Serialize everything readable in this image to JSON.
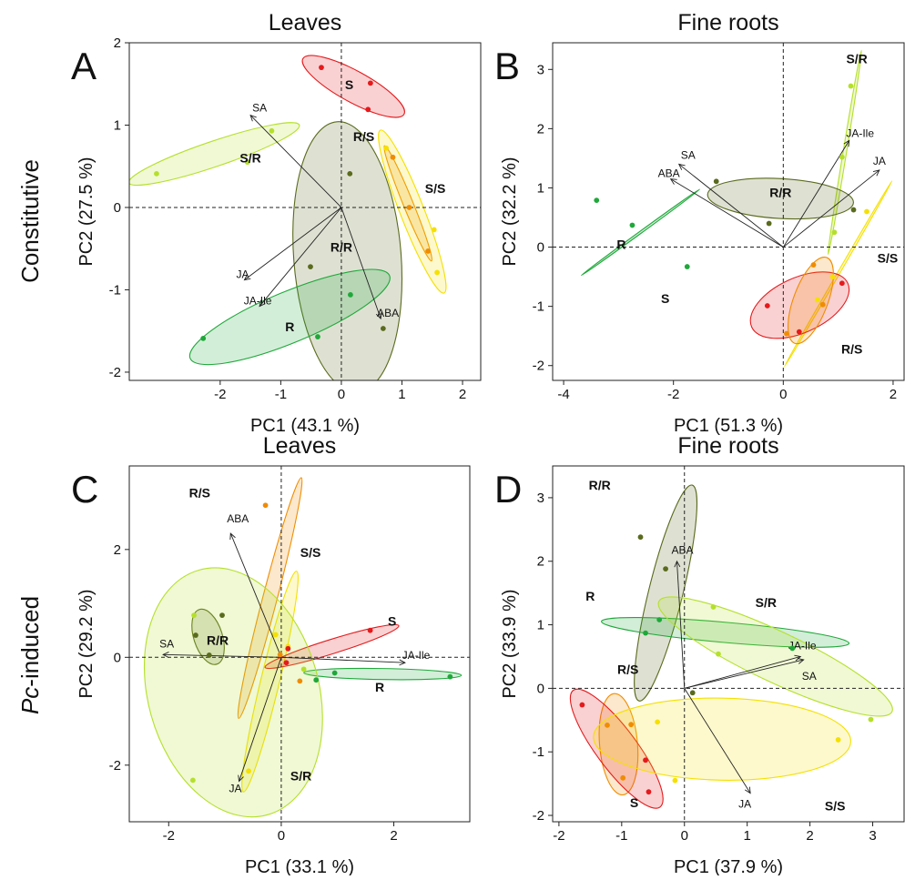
{
  "row_labels": {
    "constitutive": "Constitutive",
    "induced_prefix": "Pc",
    "induced_suffix": "-induced"
  },
  "colors": {
    "R": "#1fa83a",
    "S": "#e41a1c",
    "RR": "#5a6b1e",
    "SS": "#f5e000",
    "RS": "#f08c00",
    "SR": "#b5e02a"
  },
  "chart_data": [
    {
      "type": "scatter",
      "panel": "A",
      "title": "Leaves",
      "xlabel": "PC1 (43.1 %)",
      "ylabel": "PC2 (27.5 %)",
      "xlim": [
        -3.5,
        2.3
      ],
      "ylim": [
        -2.1,
        2.0
      ],
      "xticks": [
        -2,
        -1,
        0,
        1,
        2
      ],
      "yticks": [
        -2,
        -1,
        0,
        1,
        2
      ],
      "groups": [
        {
          "name": "S",
          "color": "S",
          "label_pos": [
            0.13,
            1.49
          ],
          "points": [
            [
              -0.33,
              1.7
            ],
            [
              0.48,
              1.51
            ],
            [
              0.44,
              1.19
            ]
          ],
          "ellipse": {
            "cx": 0.2,
            "cy": 1.47,
            "rx": 0.9,
            "ry": 0.22,
            "angle": -22
          }
        },
        {
          "name": "S/R",
          "color": "SR",
          "label_pos": [
            -1.5,
            0.6
          ],
          "points": [
            [
              -3.05,
              0.41
            ],
            [
              -1.15,
              0.93
            ],
            [
              -1.55,
              0.55
            ]
          ],
          "ellipse": {
            "cx": -2.1,
            "cy": 0.65,
            "rx": 1.45,
            "ry": 0.18,
            "angle": 14
          }
        },
        {
          "name": "R/S",
          "color": "RS",
          "label_pos": [
            0.37,
            0.86
          ],
          "points": [
            [
              0.85,
              0.61
            ],
            [
              1.12,
              0.0
            ],
            [
              1.43,
              -0.53
            ]
          ],
          "ellipse": {
            "cx": 1.1,
            "cy": 0.05,
            "rx": 0.8,
            "ry": 0.07,
            "angle": -61
          }
        },
        {
          "name": "S/S",
          "color": "SS",
          "label_pos": [
            1.55,
            0.23
          ],
          "points": [
            [
              0.74,
              0.72
            ],
            [
              1.53,
              -0.27
            ],
            [
              1.58,
              -0.79
            ]
          ],
          "ellipse": {
            "cx": 1.17,
            "cy": -0.05,
            "rx": 1.12,
            "ry": 0.17,
            "angle": -62
          }
        },
        {
          "name": "R/R",
          "color": "RR",
          "label_pos": [
            0.0,
            -0.48
          ],
          "points": [
            [
              0.14,
              0.41
            ],
            [
              -0.51,
              -0.72
            ],
            [
              0.69,
              -1.47
            ]
          ],
          "ellipse": {
            "cx": 0.1,
            "cy": -0.6,
            "rx": 1.65,
            "ry": 0.76,
            "angle": -84
          }
        },
        {
          "name": "R",
          "color": "R",
          "label_pos": [
            -0.85,
            -1.45
          ],
          "points": [
            [
              -2.28,
              -1.59
            ],
            [
              -0.39,
              -1.57
            ],
            [
              0.15,
              -1.06
            ]
          ],
          "ellipse": {
            "cx": -0.85,
            "cy": -1.33,
            "rx": 1.72,
            "ry": 0.36,
            "angle": 17
          }
        }
      ],
      "vectors": [
        {
          "name": "SA",
          "x": -1.5,
          "y": 1.12
        },
        {
          "name": "JA",
          "x": -1.6,
          "y": -0.88
        },
        {
          "name": "JA-Ile",
          "x": -1.35,
          "y": -1.2
        },
        {
          "name": "ABA",
          "x": 0.65,
          "y": -1.35
        }
      ],
      "label_offsets": [
        [
          10,
          -4
        ],
        [
          -2,
          -2
        ],
        [
          -2,
          -2
        ],
        [
          8,
          -2
        ]
      ],
      "label_anchor": [
        "middle",
        "middle",
        "middle",
        "middle"
      ]
    },
    {
      "type": "scatter",
      "panel": "B",
      "title": "Fine roots",
      "xlabel": "PC1 (51.3 %)",
      "ylabel": "PC2 (32.2 %)",
      "xlim": [
        -4.2,
        2.2
      ],
      "ylim": [
        -2.25,
        3.45
      ],
      "xticks": [
        -4,
        -2,
        0,
        2
      ],
      "yticks": [
        -2,
        -1,
        0,
        1,
        2,
        3
      ],
      "groups": [
        {
          "name": "S/R",
          "color": "SR",
          "label_pos": [
            1.34,
            3.18
          ],
          "points": [
            [
              1.23,
              2.72
            ],
            [
              1.07,
              1.52
            ],
            [
              0.93,
              0.25
            ]
          ],
          "ellipse": {
            "cx": 1.12,
            "cy": 1.6,
            "rx": 1.75,
            "ry": 0.03,
            "angle": 80
          }
        },
        {
          "name": "R/R",
          "color": "RR",
          "label_pos": [
            -0.05,
            0.92
          ],
          "points": [
            [
              -1.22,
              1.11
            ],
            [
              -0.26,
              0.4
            ],
            [
              1.28,
              0.63
            ]
          ],
          "ellipse": {
            "cx": -0.05,
            "cy": 0.82,
            "rx": 1.33,
            "ry": 0.35,
            "angle": -3
          }
        },
        {
          "name": "R",
          "color": "R",
          "label_pos": [
            -2.95,
            0.05
          ],
          "points": [
            [
              -3.4,
              0.79
            ],
            [
              -2.75,
              0.37
            ],
            [
              -1.75,
              -0.33
            ]
          ],
          "ellipse": {
            "cx": -2.6,
            "cy": 0.25,
            "rx": 1.3,
            "ry": 0.01,
            "angle": 34
          }
        },
        {
          "name": "S/S",
          "color": "SS",
          "label_pos": [
            1.9,
            -0.18
          ],
          "points": [
            [
              1.52,
              0.6
            ],
            [
              0.62,
              -0.89
            ],
            [
              0.9,
              -0.5
            ]
          ],
          "ellipse": {
            "cx": 1.0,
            "cy": -0.45,
            "rx": 1.85,
            "ry": 0.02,
            "angle": 58
          }
        },
        {
          "name": "S",
          "color": "S",
          "label_pos": [
            -2.15,
            -0.87
          ],
          "points": [
            [
              -0.29,
              -0.99
            ],
            [
              1.07,
              -0.61
            ],
            [
              0.29,
              -1.43
            ]
          ],
          "ellipse": {
            "cx": 0.3,
            "cy": -0.98,
            "rx": 0.95,
            "ry": 0.48,
            "angle": 23
          }
        },
        {
          "name": "R/S",
          "color": "RS",
          "label_pos": [
            1.25,
            -1.72
          ],
          "points": [
            [
              0.55,
              -0.3
            ],
            [
              0.72,
              -0.97
            ],
            [
              0.06,
              -1.46
            ]
          ],
          "ellipse": {
            "cx": 0.5,
            "cy": -0.9,
            "rx": 0.78,
            "ry": 0.3,
            "angle": 68
          }
        }
      ],
      "vectors": [
        {
          "name": "SA",
          "x": -1.9,
          "y": 1.4
        },
        {
          "name": "ABA",
          "x": -2.05,
          "y": 1.15
        },
        {
          "name": "JA-Ile",
          "x": 1.2,
          "y": 1.8
        },
        {
          "name": "JA",
          "x": 1.75,
          "y": 1.3
        }
      ],
      "label_offsets": [
        [
          10,
          -6
        ],
        [
          -2,
          -2
        ],
        [
          12,
          -4
        ],
        [
          0,
          -6
        ]
      ],
      "label_anchor": [
        "middle",
        "middle",
        "middle",
        "middle"
      ]
    },
    {
      "type": "scatter",
      "panel": "C",
      "title": "Leaves",
      "xlabel": "PC1 (33.1 %)",
      "ylabel": "PC2 (29.2 %)",
      "xlim": [
        -2.7,
        3.35
      ],
      "ylim": [
        -3.05,
        3.55
      ],
      "xticks": [
        -2,
        0,
        2
      ],
      "yticks": [
        -2,
        0,
        2
      ],
      "groups": [
        {
          "name": "R/S",
          "color": "RS",
          "label_pos": [
            -1.45,
            3.05
          ],
          "points": [
            [
              -0.28,
              2.82
            ],
            [
              0.33,
              -0.44
            ],
            [
              -0.02,
              0.05
            ]
          ],
          "ellipse": {
            "cx": -0.2,
            "cy": 1.1,
            "rx": 2.3,
            "ry": 0.13,
            "angle": 76
          }
        },
        {
          "name": "S/S",
          "color": "SS",
          "label_pos": [
            0.52,
            1.95
          ],
          "points": [
            [
              -0.1,
              0.42
            ],
            [
              -0.58,
              -2.11
            ],
            [
              0.12,
              0.2
            ]
          ],
          "ellipse": {
            "cx": -0.2,
            "cy": -0.45,
            "rx": 2.1,
            "ry": 0.17,
            "angle": 77
          }
        },
        {
          "name": "S",
          "color": "S",
          "label_pos": [
            1.97,
            0.67
          ],
          "points": [
            [
              1.58,
              0.5
            ],
            [
              0.12,
              0.16
            ],
            [
              0.09,
              -0.1
            ]
          ],
          "ellipse": {
            "cx": 0.9,
            "cy": 0.2,
            "rx": 1.25,
            "ry": 0.13,
            "angle": 18
          }
        },
        {
          "name": "R/R",
          "color": "RR",
          "label_pos": [
            -1.13,
            0.32
          ],
          "points": [
            [
              -1.05,
              0.78
            ],
            [
              -1.52,
              0.41
            ],
            [
              -1.28,
              0.04
            ]
          ],
          "ellipse": {
            "cx": -1.3,
            "cy": 0.38,
            "rx": 0.53,
            "ry": 0.26,
            "angle": -73
          }
        },
        {
          "name": "R",
          "color": "R",
          "label_pos": [
            1.75,
            -0.55
          ],
          "points": [
            [
              0.95,
              -0.29
            ],
            [
              0.62,
              -0.42
            ],
            [
              3.0,
              -0.36
            ]
          ],
          "ellipse": {
            "cx": 1.8,
            "cy": -0.31,
            "rx": 1.4,
            "ry": 0.1,
            "angle": -1
          }
        },
        {
          "name": "S/R",
          "color": "SR",
          "label_pos": [
            0.35,
            -2.2
          ],
          "points": [
            [
              -1.57,
              -2.28
            ],
            [
              -1.55,
              0.78
            ],
            [
              0.4,
              -0.22
            ]
          ],
          "ellipse": {
            "cx": -0.85,
            "cy": -0.65,
            "rx": 2.35,
            "ry": 1.55,
            "angle": -75
          }
        }
      ],
      "vectors": [
        {
          "name": "ABA",
          "x": -0.9,
          "y": 2.3
        },
        {
          "name": "SA",
          "x": -2.1,
          "y": 0.05
        },
        {
          "name": "JA-Ile",
          "x": 2.2,
          "y": -0.1
        },
        {
          "name": "JA",
          "x": -0.75,
          "y": -2.3
        }
      ],
      "label_offsets": [
        [
          8,
          -12
        ],
        [
          4,
          -8
        ],
        [
          12,
          -4
        ],
        [
          -4,
          12
        ]
      ],
      "label_anchor": [
        "middle",
        "middle",
        "middle",
        "middle"
      ]
    },
    {
      "type": "scatter",
      "panel": "D",
      "title": "Fine roots",
      "xlabel": "PC1 (37.9 %)",
      "ylabel": "PC2 (33.9 %)",
      "xlim": [
        -2.1,
        3.5
      ],
      "ylim": [
        -2.1,
        3.5
      ],
      "xticks": [
        -2,
        -1,
        0,
        1,
        2,
        3
      ],
      "yticks": [
        -2,
        -1,
        0,
        1,
        2,
        3
      ],
      "groups": [
        {
          "name": "R/R",
          "color": "RR",
          "label_pos": [
            -1.35,
            3.2
          ],
          "points": [
            [
              -0.7,
              2.38
            ],
            [
              -0.3,
              1.88
            ],
            [
              0.13,
              -0.07
            ]
          ],
          "ellipse": {
            "cx": -0.3,
            "cy": 1.5,
            "rx": 1.75,
            "ry": 0.27,
            "angle": 76
          }
        },
        {
          "name": "R",
          "color": "R",
          "label_pos": [
            -1.5,
            1.45
          ],
          "points": [
            [
              -0.4,
              1.08
            ],
            [
              -0.62,
              0.87
            ],
            [
              1.72,
              0.63
            ]
          ],
          "ellipse": {
            "cx": 0.65,
            "cy": 0.88,
            "rx": 1.98,
            "ry": 0.16,
            "angle": -5
          }
        },
        {
          "name": "S/R",
          "color": "SR",
          "label_pos": [
            1.3,
            1.35
          ],
          "points": [
            [
              0.46,
              1.28
            ],
            [
              0.54,
              0.54
            ],
            [
              2.97,
              -0.49
            ]
          ],
          "ellipse": {
            "cx": 1.45,
            "cy": 0.5,
            "rx": 2.05,
            "ry": 0.4,
            "angle": -25
          }
        },
        {
          "name": "R/S",
          "color": "RS",
          "label_pos": [
            -0.9,
            0.3
          ],
          "points": [
            [
              -1.23,
              -0.58
            ],
            [
              -0.85,
              -0.57
            ],
            [
              -0.98,
              -1.41
            ]
          ],
          "ellipse": {
            "cx": -1.05,
            "cy": -0.88,
            "rx": 0.8,
            "ry": 0.3,
            "angle": -85
          }
        },
        {
          "name": "S",
          "color": "S",
          "label_pos": [
            -0.8,
            -1.8
          ],
          "points": [
            [
              -1.63,
              -0.26
            ],
            [
              -0.62,
              -1.13
            ],
            [
              -0.57,
              -1.63
            ]
          ],
          "ellipse": {
            "cx": -1.08,
            "cy": -0.95,
            "rx": 1.15,
            "ry": 0.32,
            "angle": -53
          }
        },
        {
          "name": "S/S",
          "color": "SS",
          "label_pos": [
            2.4,
            -1.85
          ],
          "points": [
            [
              -0.43,
              -0.53
            ],
            [
              -0.15,
              -1.45
            ],
            [
              2.45,
              -0.81
            ]
          ],
          "ellipse": {
            "cx": 0.6,
            "cy": -0.8,
            "rx": 2.05,
            "ry": 0.65,
            "angle": -1
          }
        }
      ],
      "vectors": [
        {
          "name": "ABA",
          "x": -0.12,
          "y": 2.0
        },
        {
          "name": "JA-Ile",
          "x": 1.85,
          "y": 0.5
        },
        {
          "name": "SA",
          "x": 1.9,
          "y": 0.45
        },
        {
          "name": "JA",
          "x": 1.05,
          "y": -1.65
        }
      ],
      "label_offsets": [
        [
          6,
          -8
        ],
        [
          2,
          -8
        ],
        [
          6,
          22
        ],
        [
          -6,
          16
        ]
      ],
      "label_anchor": [
        "middle",
        "middle",
        "middle",
        "middle"
      ]
    }
  ]
}
